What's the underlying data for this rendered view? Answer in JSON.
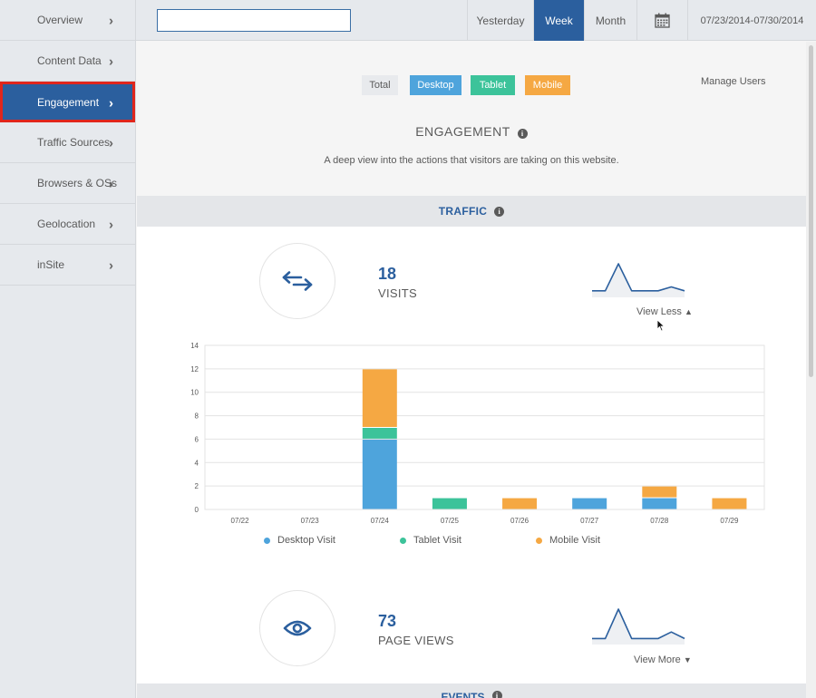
{
  "sidebar": {
    "items": [
      {
        "label": "Overview"
      },
      {
        "label": "Content Data"
      },
      {
        "label": "Engagement"
      },
      {
        "label": "Traffic Sources"
      },
      {
        "label": "Browsers & OSs"
      },
      {
        "label": "Geolocation"
      },
      {
        "label": "inSite"
      }
    ]
  },
  "topbar": {
    "search_value": "",
    "tabs": [
      {
        "label": "Yesterday"
      },
      {
        "label": "Week"
      },
      {
        "label": "Month"
      }
    ],
    "active_tab": "Week",
    "date_range": "07/23/2014-07/30/2014"
  },
  "filters": {
    "total": "Total",
    "desktop": "Desktop",
    "tablet": "Tablet",
    "mobile": "Mobile",
    "manage_users": "Manage Users"
  },
  "section": {
    "title": "ENGAGEMENT",
    "description": "A deep view into the actions that visitors are taking on this website."
  },
  "traffic": {
    "title": "TRAFFIC"
  },
  "visits": {
    "value": "18",
    "label": "VISITS",
    "toggle": "View Less"
  },
  "pageviews": {
    "value": "73",
    "label": "PAGE VIEWS",
    "toggle": "View More"
  },
  "events": {
    "title": "EVENTS"
  },
  "colors": {
    "desktop": "#4ea4dc",
    "tablet": "#3cc39a",
    "mobile": "#f5a843",
    "accent": "#2b5f9e"
  },
  "chart_data": {
    "type": "bar",
    "stacked": true,
    "categories": [
      "07/22",
      "07/23",
      "07/24",
      "07/25",
      "07/26",
      "07/27",
      "07/28",
      "07/29"
    ],
    "series": [
      {
        "name": "Desktop Visit",
        "values": [
          0,
          0,
          6,
          0,
          0,
          1,
          1,
          0
        ]
      },
      {
        "name": "Tablet Visit",
        "values": [
          0,
          0,
          1,
          1,
          0,
          0,
          0,
          0
        ]
      },
      {
        "name": "Mobile Visit",
        "values": [
          0,
          0,
          5,
          0,
          1,
          0,
          1,
          1
        ]
      }
    ],
    "ylim": [
      0,
      14
    ],
    "yticks": [
      0,
      2,
      4,
      6,
      8,
      10,
      12,
      14
    ],
    "grid": true,
    "legend": "bottom"
  },
  "sparkline_visits": [
    1,
    1,
    8,
    1,
    1,
    1,
    2,
    1
  ],
  "sparkline_pageviews": [
    1,
    1,
    10,
    1,
    1,
    1,
    3,
    1
  ]
}
